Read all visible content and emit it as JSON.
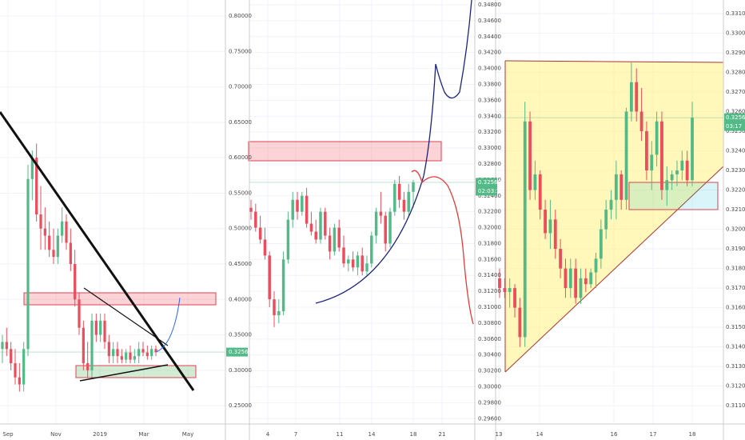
{
  "chart_data": [
    {
      "type": "candlestick",
      "open": [
        0.33,
        0.34,
        0.33,
        0.31,
        0.29,
        0.28,
        0.33,
        0.57,
        0.6,
        0.52,
        0.5,
        0.49,
        0.47,
        0.46,
        0.49,
        0.51,
        0.48,
        0.45,
        0.4,
        0.36,
        0.31,
        0.3,
        0.37,
        0.35,
        0.37,
        0.34,
        0.32,
        0.33,
        0.32,
        0.315,
        0.325,
        0.315,
        0.32,
        0.33,
        0.325,
        0.32,
        0.33
      ],
      "high": [
        0.35,
        0.36,
        0.34,
        0.33,
        0.31,
        0.34,
        0.59,
        0.61,
        0.62,
        0.56,
        0.53,
        0.51,
        0.5,
        0.5,
        0.53,
        0.52,
        0.5,
        0.47,
        0.41,
        0.37,
        0.34,
        0.38,
        0.38,
        0.38,
        0.38,
        0.35,
        0.34,
        0.34,
        0.33,
        0.33,
        0.335,
        0.33,
        0.34,
        0.34,
        0.335,
        0.335,
        0.335
      ],
      "low": [
        0.31,
        0.32,
        0.3,
        0.28,
        0.27,
        0.27,
        0.32,
        0.54,
        0.51,
        0.47,
        0.47,
        0.46,
        0.45,
        0.45,
        0.48,
        0.47,
        0.44,
        0.39,
        0.35,
        0.3,
        0.29,
        0.29,
        0.34,
        0.34,
        0.33,
        0.31,
        0.31,
        0.31,
        0.31,
        0.31,
        0.31,
        0.31,
        0.31,
        0.32,
        0.315,
        0.315,
        0.32
      ],
      "close": [
        0.34,
        0.33,
        0.31,
        0.29,
        0.28,
        0.33,
        0.57,
        0.6,
        0.52,
        0.5,
        0.49,
        0.47,
        0.46,
        0.49,
        0.51,
        0.48,
        0.45,
        0.4,
        0.36,
        0.31,
        0.3,
        0.37,
        0.35,
        0.37,
        0.34,
        0.32,
        0.33,
        0.32,
        0.315,
        0.325,
        0.315,
        0.32,
        0.33,
        0.325,
        0.32,
        0.33,
        0.32569
      ],
      "ylim": [
        0.2242,
        0.8226
      ],
      "yticks": [
        {
          "value": 0.8,
          "label": "0.80000"
        },
        {
          "value": 0.75,
          "label": "0.75000"
        },
        {
          "value": 0.7,
          "label": "0.70000"
        },
        {
          "value": 0.65,
          "label": "0.65000"
        },
        {
          "value": 0.6,
          "label": "0.60000"
        },
        {
          "value": 0.55,
          "label": "0.55000"
        },
        {
          "value": 0.5,
          "label": "0.50000"
        },
        {
          "value": 0.45,
          "label": "0.45000"
        },
        {
          "value": 0.4,
          "label": "0.40000"
        },
        {
          "value": 0.35,
          "label": "0.35000"
        },
        {
          "value": 0.3,
          "label": "0.30000"
        },
        {
          "value": 0.25,
          "label": "0.25000"
        }
      ],
      "x_labels": [
        "Sep",
        "Nov",
        "2019",
        "Mar",
        "May"
      ],
      "price_label": 0.32569,
      "up_color": "#53b987",
      "down_color": "#eb4d5c"
    },
    {
      "type": "candlestick",
      "open": [
        0.3225,
        0.322,
        0.32,
        0.3185,
        0.3165,
        0.311,
        0.309,
        0.3095,
        0.316,
        0.321,
        0.3235,
        0.322,
        0.324,
        0.3205,
        0.3195,
        0.3185,
        0.322,
        0.319,
        0.317,
        0.32,
        0.3175,
        0.3155,
        0.316,
        0.315,
        0.3165,
        0.3145,
        0.3155,
        0.319,
        0.322,
        0.3215,
        0.318,
        0.322,
        0.3255,
        0.3235,
        0.322,
        0.3245
      ],
      "high": [
        0.3235,
        0.323,
        0.3215,
        0.32,
        0.317,
        0.312,
        0.311,
        0.317,
        0.322,
        0.3245,
        0.3245,
        0.3245,
        0.325,
        0.322,
        0.321,
        0.3225,
        0.3225,
        0.32,
        0.3205,
        0.321,
        0.319,
        0.3165,
        0.317,
        0.317,
        0.3175,
        0.3165,
        0.3195,
        0.3225,
        0.3245,
        0.322,
        0.3225,
        0.326,
        0.3265,
        0.3245,
        0.3255,
        0.326
      ],
      "low": [
        0.321,
        0.3195,
        0.318,
        0.316,
        0.31,
        0.3075,
        0.308,
        0.309,
        0.3155,
        0.32,
        0.321,
        0.3215,
        0.32,
        0.319,
        0.318,
        0.318,
        0.3185,
        0.316,
        0.3165,
        0.317,
        0.315,
        0.3145,
        0.3145,
        0.314,
        0.314,
        0.314,
        0.315,
        0.318,
        0.3205,
        0.317,
        0.3175,
        0.3215,
        0.3225,
        0.321,
        0.3215,
        0.3225
      ],
      "close": [
        0.322,
        0.32,
        0.3185,
        0.3165,
        0.311,
        0.309,
        0.3095,
        0.316,
        0.321,
        0.3235,
        0.322,
        0.324,
        0.3205,
        0.3195,
        0.3185,
        0.322,
        0.319,
        0.317,
        0.32,
        0.3175,
        0.3155,
        0.316,
        0.315,
        0.3165,
        0.3145,
        0.3155,
        0.319,
        0.322,
        0.3215,
        0.318,
        0.322,
        0.3255,
        0.3235,
        0.322,
        0.3245,
        0.32569
      ],
      "ylim": [
        0.29533,
        0.3486
      ],
      "yticks": [
        {
          "value": 0.348,
          "label": "0.34800"
        },
        {
          "value": 0.346,
          "label": "0.34600"
        },
        {
          "value": 0.344,
          "label": "0.34400"
        },
        {
          "value": 0.342,
          "label": "0.34200"
        },
        {
          "value": 0.34,
          "label": "0.34000"
        },
        {
          "value": 0.338,
          "label": "0.33800"
        },
        {
          "value": 0.336,
          "label": "0.33600"
        },
        {
          "value": 0.334,
          "label": "0.33400"
        },
        {
          "value": 0.332,
          "label": "0.33200"
        },
        {
          "value": 0.33,
          "label": "0.33000"
        },
        {
          "value": 0.328,
          "label": "0.32800"
        },
        {
          "value": 0.326,
          "label": "0.32600"
        },
        {
          "value": 0.324,
          "label": "0.32400"
        },
        {
          "value": 0.322,
          "label": "0.32200"
        },
        {
          "value": 0.32,
          "label": "0.32000"
        },
        {
          "value": 0.318,
          "label": "0.31800"
        },
        {
          "value": 0.316,
          "label": "0.31600"
        },
        {
          "value": 0.314,
          "label": "0.31400"
        },
        {
          "value": 0.312,
          "label": "0.31200"
        },
        {
          "value": 0.31,
          "label": "0.31000"
        },
        {
          "value": 0.308,
          "label": "0.30800"
        },
        {
          "value": 0.306,
          "label": "0.30600"
        },
        {
          "value": 0.304,
          "label": "0.30400"
        },
        {
          "value": 0.302,
          "label": "0.30200"
        },
        {
          "value": 0.3,
          "label": "0.30000"
        },
        {
          "value": 0.298,
          "label": "0.29800"
        },
        {
          "value": 0.296,
          "label": "0.29600"
        }
      ],
      "x_labels": [
        "4",
        "7",
        "11",
        "14",
        "18",
        "21"
      ],
      "price_label": 0.32569,
      "countdown": "02:03:17",
      "up_color": "#53b987",
      "down_color": "#eb4d5c"
    },
    {
      "type": "candlestick",
      "open": [
        0.3175,
        0.317,
        0.3168,
        0.317,
        0.316,
        0.3145,
        0.3255,
        0.322,
        0.3228,
        0.321,
        0.3198,
        0.3205,
        0.319,
        0.318,
        0.317,
        0.318,
        0.3165,
        0.3175,
        0.3172,
        0.3178,
        0.3185,
        0.32,
        0.321,
        0.3215,
        0.3228,
        0.3215,
        0.326,
        0.3275,
        0.326,
        0.325,
        0.323,
        0.3238,
        0.3255,
        0.322,
        0.3225,
        0.3228,
        0.323,
        0.3235,
        0.3225
      ],
      "high": [
        0.318,
        0.3175,
        0.3175,
        0.3172,
        0.3165,
        0.3265,
        0.326,
        0.3235,
        0.323,
        0.3215,
        0.3215,
        0.321,
        0.3195,
        0.3185,
        0.3185,
        0.3185,
        0.318,
        0.318,
        0.318,
        0.3188,
        0.3205,
        0.3215,
        0.322,
        0.3235,
        0.323,
        0.3262,
        0.3285,
        0.3282,
        0.3272,
        0.3255,
        0.3245,
        0.326,
        0.326,
        0.3232,
        0.323,
        0.3235,
        0.324,
        0.324,
        0.3265
      ],
      "low": [
        0.3165,
        0.3165,
        0.316,
        0.3155,
        0.314,
        0.314,
        0.3215,
        0.3215,
        0.3205,
        0.3195,
        0.319,
        0.3185,
        0.3175,
        0.3165,
        0.3165,
        0.3162,
        0.3162,
        0.3168,
        0.317,
        0.317,
        0.318,
        0.3195,
        0.3205,
        0.3205,
        0.321,
        0.321,
        0.3255,
        0.3255,
        0.3245,
        0.3225,
        0.322,
        0.3232,
        0.3215,
        0.3212,
        0.322,
        0.3222,
        0.3225,
        0.3222,
        0.3222
      ],
      "close": [
        0.317,
        0.3168,
        0.317,
        0.316,
        0.3145,
        0.3255,
        0.322,
        0.3228,
        0.321,
        0.3198,
        0.3205,
        0.319,
        0.318,
        0.317,
        0.318,
        0.3165,
        0.3175,
        0.3172,
        0.3178,
        0.3185,
        0.32,
        0.321,
        0.3215,
        0.3228,
        0.3215,
        0.326,
        0.3275,
        0.326,
        0.325,
        0.323,
        0.3238,
        0.3255,
        0.322,
        0.3225,
        0.3228,
        0.323,
        0.3235,
        0.3225,
        0.32569
      ],
      "ylim": [
        0.31007,
        0.33169
      ],
      "yticks": [
        {
          "value": 0.331,
          "label": "0.33100"
        },
        {
          "value": 0.33,
          "label": "0.33000"
        },
        {
          "value": 0.329,
          "label": "0.32900"
        },
        {
          "value": 0.328,
          "label": "0.32800"
        },
        {
          "value": 0.327,
          "label": "0.32700"
        },
        {
          "value": 0.326,
          "label": "0.32600"
        },
        {
          "value": 0.325,
          "label": "0.32500"
        },
        {
          "value": 0.324,
          "label": "0.32400"
        },
        {
          "value": 0.323,
          "label": "0.32300"
        },
        {
          "value": 0.322,
          "label": "0.32200"
        },
        {
          "value": 0.321,
          "label": "0.32100"
        },
        {
          "value": 0.32,
          "label": "0.32000"
        },
        {
          "value": 0.319,
          "label": "0.31900"
        },
        {
          "value": 0.318,
          "label": "0.31800"
        },
        {
          "value": 0.317,
          "label": "0.31700"
        },
        {
          "value": 0.316,
          "label": "0.31600"
        },
        {
          "value": 0.315,
          "label": "0.31500"
        },
        {
          "value": 0.314,
          "label": "0.31400"
        },
        {
          "value": 0.313,
          "label": "0.31300"
        },
        {
          "value": 0.312,
          "label": "0.31200"
        },
        {
          "value": 0.311,
          "label": "0.31100"
        }
      ],
      "x_labels": [
        "13",
        "14",
        "16",
        "17",
        "18"
      ],
      "price_label": 0.32569,
      "countdown": "03:17",
      "up_color": "#53b987",
      "down_color": "#eb4d5c"
    }
  ]
}
